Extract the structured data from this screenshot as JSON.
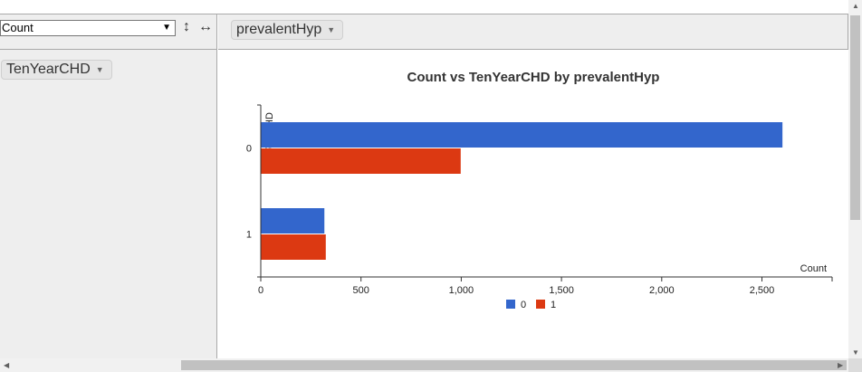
{
  "controls": {
    "aggregator": "Count",
    "sort_rows_icon": "↕",
    "sort_cols_icon": "↔",
    "col_attr": "prevalentHyp",
    "row_attr": "TenYearCHD"
  },
  "chart_data": {
    "type": "bar",
    "orientation": "horizontal",
    "title": "Count vs TenYearCHD by prevalentHyp",
    "xlabel": "Count",
    "ylabel": "TenYearCHD",
    "categories": [
      "0",
      "1"
    ],
    "series": [
      {
        "name": "0",
        "color": "#3366cc",
        "values": [
          2600,
          315
        ]
      },
      {
        "name": "1",
        "color": "#dc3912",
        "values": [
          995,
          322
        ]
      }
    ],
    "xlim": [
      0,
      2850
    ],
    "xticks": [
      0,
      500,
      1000,
      1500,
      2000,
      2500
    ],
    "xtick_labels": [
      "0",
      "500",
      "1,000",
      "1,500",
      "2,000",
      "2,500"
    ],
    "legend": "bottom"
  }
}
